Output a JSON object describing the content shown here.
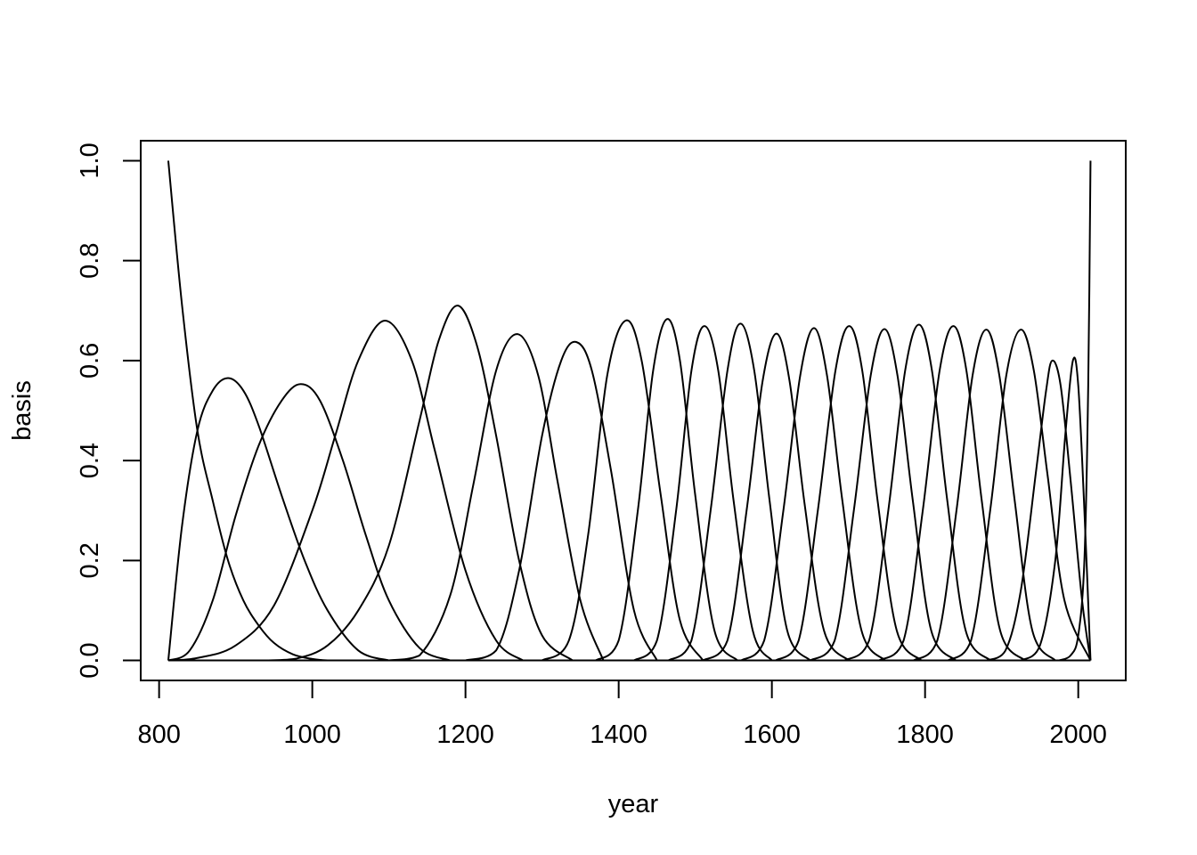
{
  "chart_data": {
    "type": "line",
    "title": "",
    "xlabel": "year",
    "ylabel": "basis",
    "xlim": [
      776,
      2062
    ],
    "ylim": [
      -0.04,
      1.04
    ],
    "x_ticks": [
      "800",
      "1000",
      "1200",
      "1400",
      "1600",
      "1800",
      "2000"
    ],
    "y_ticks": [
      "0.0",
      "0.2",
      "0.4",
      "0.6",
      "0.8",
      "1.0"
    ],
    "grid": false,
    "legend": "none",
    "line_color": "#000000",
    "series": [
      {
        "x": [
          812,
          830,
          850,
          870,
          890,
          910,
          930,
          950,
          975,
          1000,
          1020,
          1040
        ],
        "values": [
          1.0,
          0.71,
          0.46,
          0.32,
          0.2,
          0.12,
          0.07,
          0.035,
          0.012,
          0.003,
          0.0,
          0.0
        ]
      },
      {
        "x": [
          812,
          830,
          850,
          870,
          890,
          910,
          930,
          960,
          990,
          1020,
          1060,
          1100
        ],
        "values": [
          0.0,
          0.27,
          0.46,
          0.54,
          0.565,
          0.54,
          0.47,
          0.33,
          0.2,
          0.1,
          0.02,
          0.0
        ]
      },
      {
        "x": [
          812,
          840,
          870,
          900,
          930,
          960,
          985,
          1010,
          1040,
          1070,
          1100,
          1140,
          1180
        ],
        "values": [
          0.0,
          0.02,
          0.12,
          0.29,
          0.43,
          0.52,
          0.553,
          0.52,
          0.4,
          0.25,
          0.12,
          0.025,
          0.0
        ]
      },
      {
        "x": [
          812,
          850,
          900,
          950,
          1000,
          1030,
          1060,
          1095,
          1130,
          1160,
          1200,
          1240,
          1275
        ],
        "values": [
          0.0,
          0.005,
          0.03,
          0.11,
          0.3,
          0.45,
          0.6,
          0.68,
          0.6,
          0.42,
          0.18,
          0.04,
          0.0
        ]
      },
      {
        "x": [
          940,
          980,
          1020,
          1060,
          1100,
          1140,
          1165,
          1190,
          1215,
          1240,
          1270,
          1300,
          1340
        ],
        "values": [
          0.0,
          0.004,
          0.03,
          0.1,
          0.23,
          0.48,
          0.64,
          0.71,
          0.63,
          0.45,
          0.2,
          0.05,
          0.0
        ]
      },
      {
        "x": [
          1100,
          1140,
          1180,
          1210,
          1240,
          1268,
          1295,
          1320,
          1350,
          1380
        ],
        "values": [
          0.0,
          0.01,
          0.13,
          0.35,
          0.58,
          0.653,
          0.57,
          0.36,
          0.12,
          0.0
        ]
      },
      {
        "x": [
          1200,
          1240,
          1270,
          1300,
          1325,
          1345,
          1365,
          1390,
          1420,
          1450
        ],
        "values": [
          0.0,
          0.02,
          0.18,
          0.45,
          0.6,
          0.637,
          0.58,
          0.38,
          0.1,
          0.0
        ]
      },
      {
        "x": [
          1300,
          1335,
          1360,
          1385,
          1409,
          1430,
          1455,
          1480,
          1510
        ],
        "values": [
          0.0,
          0.04,
          0.25,
          0.57,
          0.68,
          0.6,
          0.33,
          0.08,
          0.0
        ]
      },
      {
        "x": [
          1370,
          1400,
          1425,
          1445,
          1463,
          1480,
          1500,
          1525,
          1555
        ],
        "values": [
          0.0,
          0.04,
          0.3,
          0.58,
          0.683,
          0.6,
          0.33,
          0.06,
          0.0
        ]
      },
      {
        "x": [
          1420,
          1450,
          1475,
          1495,
          1512,
          1530,
          1550,
          1575,
          1600
        ],
        "values": [
          0.0,
          0.04,
          0.3,
          0.58,
          0.669,
          0.58,
          0.32,
          0.06,
          0.0
        ]
      },
      {
        "x": [
          1465,
          1495,
          1520,
          1542,
          1559,
          1577,
          1597,
          1620,
          1650
        ],
        "values": [
          0.0,
          0.04,
          0.3,
          0.58,
          0.674,
          0.58,
          0.32,
          0.06,
          0.0
        ]
      },
      {
        "x": [
          1510,
          1542,
          1567,
          1588,
          1606,
          1623,
          1643,
          1668,
          1700
        ],
        "values": [
          0.0,
          0.04,
          0.3,
          0.56,
          0.654,
          0.56,
          0.31,
          0.06,
          0.0
        ]
      },
      {
        "x": [
          1560,
          1590,
          1615,
          1637,
          1655,
          1672,
          1692,
          1717,
          1748
        ],
        "values": [
          0.0,
          0.04,
          0.3,
          0.57,
          0.665,
          0.57,
          0.32,
          0.06,
          0.0
        ]
      },
      {
        "x": [
          1605,
          1635,
          1660,
          1683,
          1701,
          1718,
          1738,
          1763,
          1795
        ],
        "values": [
          0.0,
          0.04,
          0.3,
          0.58,
          0.669,
          0.58,
          0.32,
          0.06,
          0.0
        ]
      },
      {
        "x": [
          1650,
          1682,
          1707,
          1729,
          1747,
          1764,
          1784,
          1808,
          1840
        ],
        "values": [
          0.0,
          0.04,
          0.3,
          0.57,
          0.663,
          0.57,
          0.32,
          0.06,
          0.0
        ]
      },
      {
        "x": [
          1695,
          1727,
          1752,
          1774,
          1792,
          1809,
          1829,
          1853,
          1885
        ],
        "values": [
          0.0,
          0.04,
          0.3,
          0.58,
          0.672,
          0.58,
          0.32,
          0.06,
          0.0
        ]
      },
      {
        "x": [
          1740,
          1772,
          1797,
          1819,
          1837,
          1854,
          1874,
          1898,
          1930
        ],
        "values": [
          0.0,
          0.04,
          0.3,
          0.58,
          0.669,
          0.58,
          0.32,
          0.06,
          0.0
        ]
      },
      {
        "x": [
          1785,
          1816,
          1841,
          1862,
          1880,
          1897,
          1917,
          1940,
          1970
        ],
        "values": [
          0.0,
          0.04,
          0.3,
          0.57,
          0.662,
          0.57,
          0.32,
          0.06,
          0.0
        ]
      },
      {
        "x": [
          1830,
          1860,
          1885,
          1906,
          1925,
          1942,
          1960,
          1982,
          2016
        ],
        "values": [
          0.0,
          0.04,
          0.3,
          0.57,
          0.662,
          0.58,
          0.37,
          0.12,
          0.0
        ]
      },
      {
        "x": [
          1880,
          1905,
          1925,
          1945,
          1958,
          1966,
          1977,
          1990,
          2005,
          2016
        ],
        "values": [
          0.0,
          0.02,
          0.14,
          0.38,
          0.54,
          0.6,
          0.55,
          0.36,
          0.12,
          0.0
        ]
      },
      {
        "x": [
          1925,
          1950,
          1970,
          1983,
          1993,
          2000,
          2008,
          2016
        ],
        "values": [
          0.0,
          0.03,
          0.2,
          0.45,
          0.6,
          0.55,
          0.3,
          0.0
        ]
      },
      {
        "x": [
          1975,
          1990,
          2000,
          2008,
          2013,
          2016
        ],
        "values": [
          0.0,
          0.01,
          0.05,
          0.2,
          0.55,
          1.0
        ]
      },
      {
        "x": [
          812,
          2016
        ],
        "values": [
          0.0,
          0.0
        ]
      }
    ]
  }
}
